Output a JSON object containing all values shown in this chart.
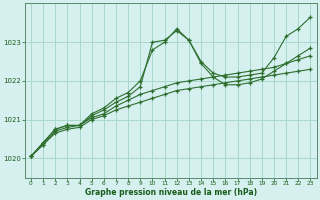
{
  "background_color": "#d6f0f0",
  "grid_color": "#a8d8cc",
  "line_color": "#2d6e2d",
  "marker_color": "#2d6e2d",
  "xlabel": "Graphe pression niveau de la mer (hPa)",
  "xlabel_color": "#1a5c1a",
  "ylim": [
    1019.5,
    1024.0
  ],
  "xlim": [
    -0.5,
    23.5
  ],
  "yticks": [
    1020,
    1021,
    1022,
    1023
  ],
  "xticks": [
    0,
    1,
    2,
    3,
    4,
    5,
    6,
    7,
    8,
    9,
    10,
    11,
    12,
    13,
    14,
    15,
    16,
    17,
    18,
    19,
    20,
    21,
    22,
    23
  ],
  "series": [
    [
      1020.05,
      1020.4,
      1020.75,
      1020.85,
      1020.85,
      1021.15,
      1021.3,
      1021.55,
      1021.7,
      1022.0,
      1022.8,
      1023.0,
      1023.35,
      1023.05,
      1022.5,
      1022.2,
      1022.1,
      1022.1,
      1022.15,
      1022.2,
      1022.6,
      1023.15,
      1023.35,
      1023.65
    ],
    [
      1020.05,
      1020.4,
      1020.75,
      1020.85,
      1020.85,
      1021.1,
      1021.25,
      1021.45,
      1021.6,
      1021.85,
      1023.0,
      1023.05,
      1023.3,
      1023.05,
      1022.45,
      1022.1,
      1021.9,
      1021.9,
      1021.95,
      1022.05,
      1022.25,
      1022.45,
      1022.65,
      1022.85
    ],
    [
      1020.05,
      1020.35,
      1020.7,
      1020.8,
      1020.85,
      1021.05,
      1021.15,
      1021.35,
      1021.5,
      1021.65,
      1021.75,
      1021.85,
      1021.95,
      1022.0,
      1022.05,
      1022.1,
      1022.15,
      1022.2,
      1022.25,
      1022.3,
      1022.35,
      1022.45,
      1022.55,
      1022.65
    ],
    [
      1020.05,
      1020.35,
      1020.65,
      1020.75,
      1020.8,
      1021.0,
      1021.1,
      1021.25,
      1021.35,
      1021.45,
      1021.55,
      1021.65,
      1021.75,
      1021.8,
      1021.85,
      1021.9,
      1021.95,
      1022.0,
      1022.05,
      1022.1,
      1022.15,
      1022.2,
      1022.25,
      1022.3
    ]
  ]
}
